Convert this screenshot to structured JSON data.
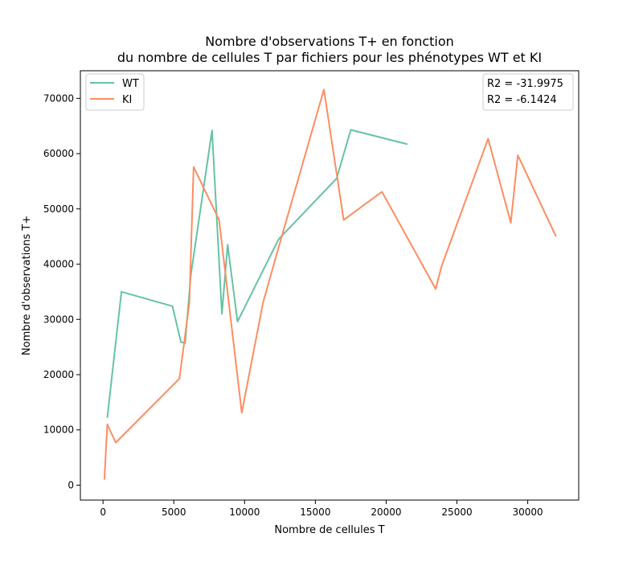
{
  "chart_data": {
    "type": "line",
    "title_line1": "Nombre d'observations T+ en fonction",
    "title_line2": "du nombre de cellules T par fichiers pour les phénotypes WT et KI",
    "xlabel": "Nombre de cellules T",
    "ylabel": "Nombre d'observations T+",
    "xlim": [
      -1600,
      33600
    ],
    "ylim": [
      -2700,
      75000
    ],
    "xticks": [
      0,
      5000,
      10000,
      15000,
      20000,
      25000,
      30000
    ],
    "xtick_labels": [
      "0",
      "5000",
      "10000",
      "15000",
      "20000",
      "25000",
      "30000"
    ],
    "yticks": [
      0,
      10000,
      20000,
      30000,
      40000,
      50000,
      60000,
      70000
    ],
    "ytick_labels": [
      "0",
      "10000",
      "20000",
      "30000",
      "40000",
      "50000",
      "60000",
      "70000"
    ],
    "grid": false,
    "legend_position": "top-left",
    "series": [
      {
        "name": "WT",
        "color": "#66c2a5",
        "points": [
          [
            300,
            12200
          ],
          [
            1300,
            35000
          ],
          [
            4900,
            32400
          ],
          [
            5500,
            25900
          ],
          [
            5800,
            25700
          ],
          [
            6200,
            38000
          ],
          [
            7700,
            64200
          ],
          [
            8400,
            31000
          ],
          [
            8800,
            43500
          ],
          [
            9500,
            29600
          ],
          [
            12400,
            44500
          ],
          [
            16500,
            55500
          ],
          [
            17500,
            64300
          ],
          [
            21500,
            61700
          ]
        ]
      },
      {
        "name": "KI",
        "color": "#fc8d62",
        "points": [
          [
            100,
            1000
          ],
          [
            300,
            11000
          ],
          [
            900,
            7700
          ],
          [
            5400,
            19300
          ],
          [
            6100,
            33000
          ],
          [
            6400,
            57600
          ],
          [
            8200,
            48000
          ],
          [
            9800,
            13100
          ],
          [
            11300,
            33000
          ],
          [
            12400,
            43000
          ],
          [
            15600,
            71600
          ],
          [
            17000,
            48000
          ],
          [
            19700,
            53100
          ],
          [
            23500,
            35500
          ],
          [
            23900,
            39500
          ],
          [
            27200,
            62700
          ],
          [
            28800,
            47500
          ],
          [
            29300,
            59700
          ],
          [
            32000,
            45000
          ]
        ]
      }
    ],
    "annotations": [
      "R2 = -31.9975",
      "R2 = -6.1424"
    ]
  }
}
